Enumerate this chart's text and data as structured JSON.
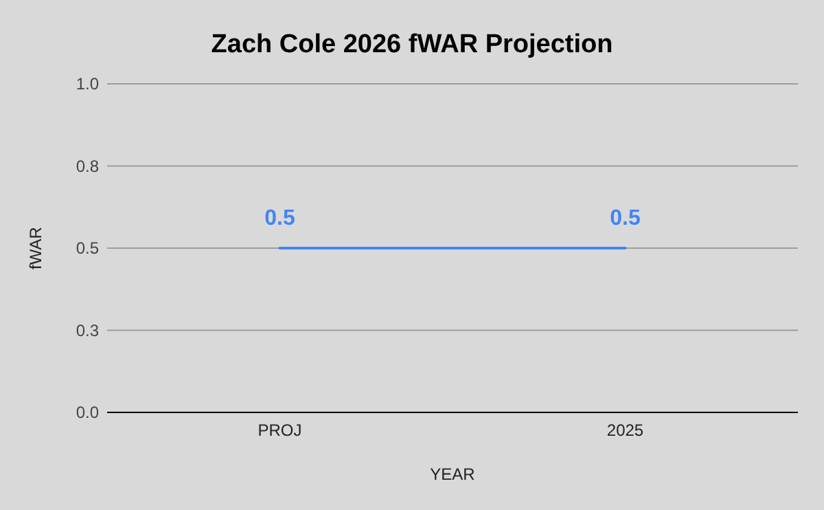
{
  "chart_data": {
    "type": "line",
    "title": "Zach Cole 2026 fWAR Projection",
    "xlabel": "YEAR",
    "ylabel": "fWAR",
    "categories": [
      "PROJ",
      "2025"
    ],
    "series": [
      {
        "color": "#4285f4",
        "values": [
          0.5,
          0.5
        ]
      }
    ],
    "ylim": [
      0,
      1
    ],
    "yticks": [
      {
        "value": 0,
        "label": "0.0"
      },
      {
        "value": 0.25,
        "label": "0.3"
      },
      {
        "value": 0.5,
        "label": "0.5"
      },
      {
        "value": 0.75,
        "label": "0.8"
      },
      {
        "value": 1,
        "label": "1.0"
      }
    ],
    "grid": "y",
    "data_labels": true,
    "marker": "none",
    "line_style": "solid"
  }
}
